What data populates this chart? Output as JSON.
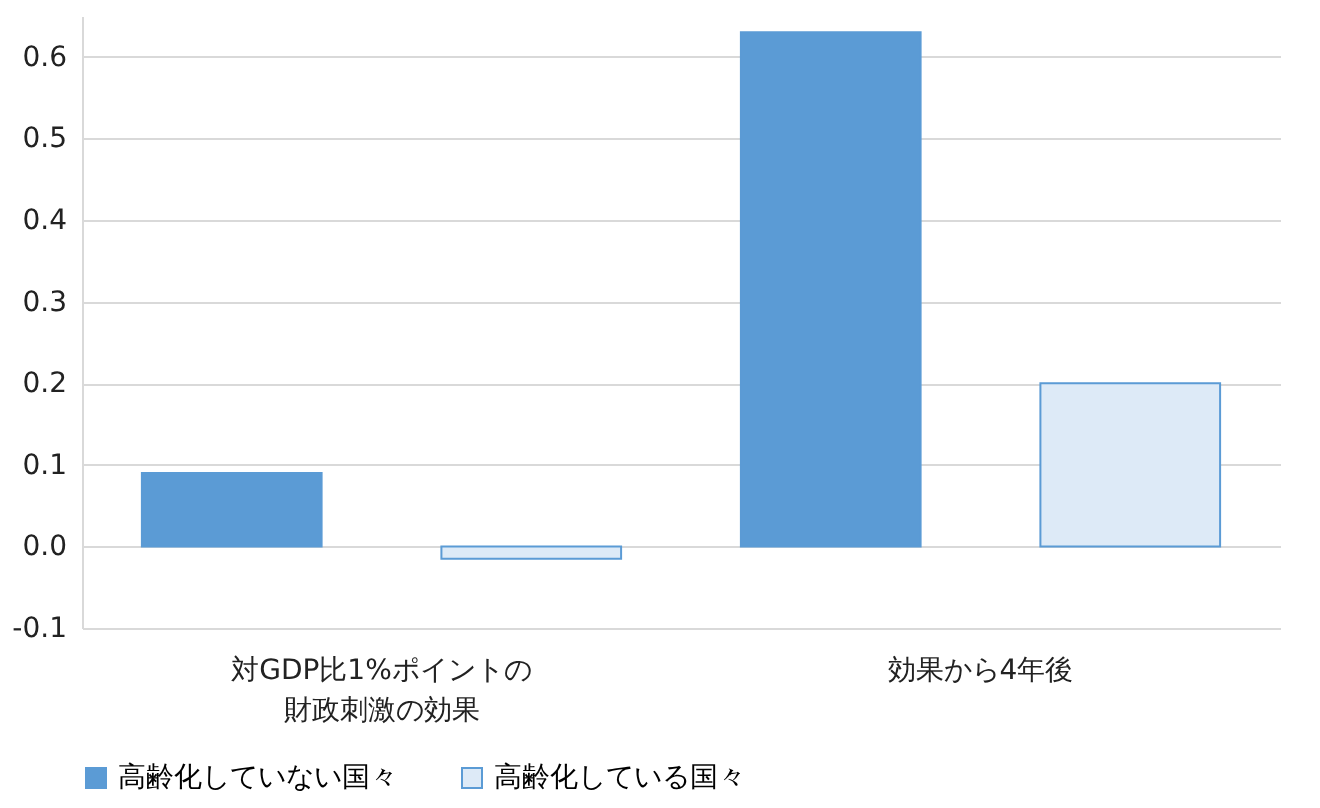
{
  "chart_data": {
    "type": "bar",
    "categories": [
      "対GDP比1%ポイントの財政刺激の効果",
      "効果から4年後"
    ],
    "series": [
      {
        "name": "高齢化していない国々",
        "color": "#5b9bd5",
        "values": [
          0.09,
          0.63
        ]
      },
      {
        "name": "高齢化している国々",
        "color": "#ddeaf7",
        "values": [
          -0.015,
          0.2
        ]
      }
    ],
    "ylim": [
      -0.1,
      0.65
    ],
    "yticks": [
      {
        "value": -0.1,
        "label": "-0.1"
      },
      {
        "value": 0,
        "label": "0.0"
      },
      0.1,
      0.2,
      0.3,
      0.4,
      0.5,
      0.6
    ],
    "grid": "y",
    "legend": "bottom"
  }
}
